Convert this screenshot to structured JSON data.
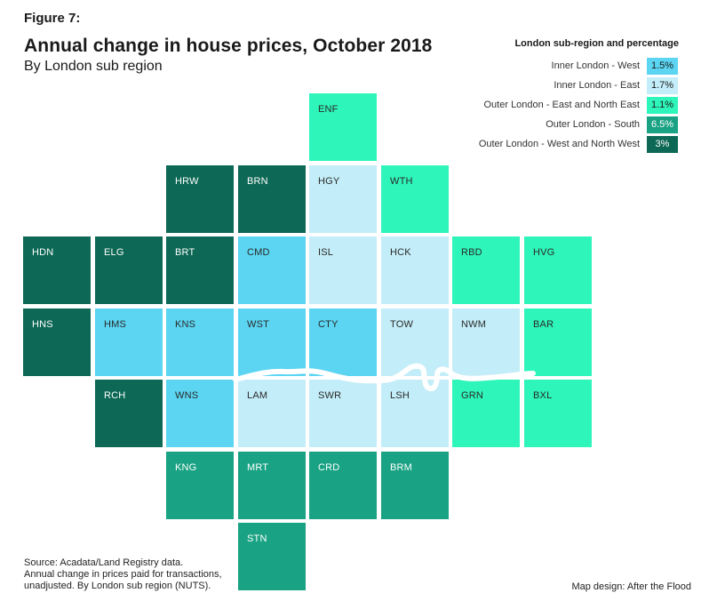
{
  "header": {
    "figure_label": "Figure 7:",
    "title": "Annual change in house prices, October 2018",
    "subtitle": "By London sub region"
  },
  "legend": {
    "title": "London sub-region and percentage",
    "items": [
      {
        "label": "Inner London - West",
        "value": "1.5%",
        "color": "#5bd5f2",
        "text_color": "#1a1a1a"
      },
      {
        "label": "Inner London - East",
        "value": "1.7%",
        "color": "#c3edf8",
        "text_color": "#1a1a1a"
      },
      {
        "label": "Outer London - East and North East",
        "value": "1.1%",
        "color": "#2ef5b9",
        "text_color": "#1a1a1a"
      },
      {
        "label": "Outer London - South",
        "value": "6.5%",
        "color": "#19a283",
        "text_color": "#ffffff"
      },
      {
        "label": "Outer London - West and North West",
        "value": "3%",
        "color": "#0d6855",
        "text_color": "#ffffff"
      }
    ]
  },
  "tiles": [
    {
      "code": "ENF",
      "region": 2
    },
    {
      "code": "HRW",
      "region": 4
    },
    {
      "code": "BRN",
      "region": 4
    },
    {
      "code": "HGY",
      "region": 1
    },
    {
      "code": "WTH",
      "region": 2
    },
    {
      "code": "HDN",
      "region": 4
    },
    {
      "code": "ELG",
      "region": 4
    },
    {
      "code": "BRT",
      "region": 4
    },
    {
      "code": "CMD",
      "region": 0
    },
    {
      "code": "ISL",
      "region": 1
    },
    {
      "code": "HCK",
      "region": 1
    },
    {
      "code": "RBD",
      "region": 2
    },
    {
      "code": "HVG",
      "region": 2
    },
    {
      "code": "HNS",
      "region": 4
    },
    {
      "code": "HMS",
      "region": 0
    },
    {
      "code": "KNS",
      "region": 0
    },
    {
      "code": "WST",
      "region": 0
    },
    {
      "code": "CTY",
      "region": 0
    },
    {
      "code": "TOW",
      "region": 1
    },
    {
      "code": "NWM",
      "region": 1
    },
    {
      "code": "BAR",
      "region": 2
    },
    {
      "code": "RCH",
      "region": 4
    },
    {
      "code": "WNS",
      "region": 0
    },
    {
      "code": "LAM",
      "region": 1
    },
    {
      "code": "SWR",
      "region": 1
    },
    {
      "code": "LSH",
      "region": 1
    },
    {
      "code": "GRN",
      "region": 2
    },
    {
      "code": "BXL",
      "region": 2
    },
    {
      "code": "KNG",
      "region": 3
    },
    {
      "code": "MRT",
      "region": 3
    },
    {
      "code": "CRD",
      "region": 3
    },
    {
      "code": "BRM",
      "region": 3
    },
    {
      "code": "STN",
      "region": 3
    }
  ],
  "footer": {
    "source_line1": "Source: Acadata/Land Registry data.",
    "source_line2": "Annual change in prices paid for transactions,",
    "source_line3": "unadjusted. By London sub region (NUTS).",
    "credit": "Map design: After the Flood"
  }
}
